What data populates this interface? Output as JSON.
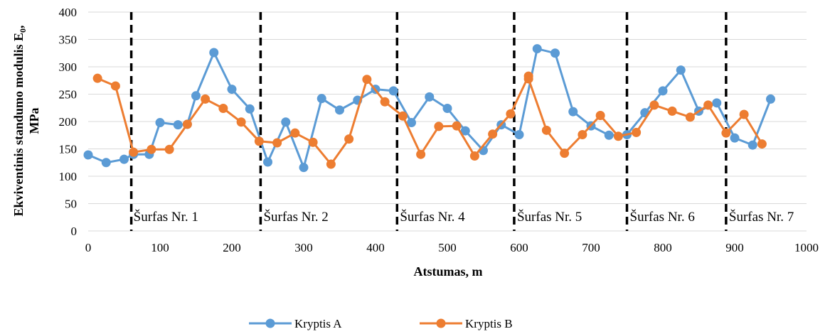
{
  "chart_data": {
    "type": "line",
    "xlabel": "Atstumas, m",
    "ylabel_line1": "Ekviventinis standumo modulis E",
    "ylabel_sub": "0",
    "ylabel_line1_suffix": ",",
    "ylabel_line2": "MPa",
    "xlim": [
      0,
      1000
    ],
    "ylim": [
      0,
      400
    ],
    "x_ticks": [
      0,
      100,
      200,
      300,
      400,
      500,
      600,
      700,
      800,
      900,
      1000
    ],
    "y_ticks": [
      0,
      50,
      100,
      150,
      200,
      250,
      300,
      350,
      400
    ],
    "grid": "horizontal",
    "legend_position": "bottom",
    "series": [
      {
        "name": "Kryptis A",
        "color": "#5B9BD5",
        "points": [
          [
            0,
            139
          ],
          [
            25,
            125
          ],
          [
            50,
            131
          ],
          [
            63,
            140
          ],
          [
            85,
            140
          ],
          [
            100,
            198
          ],
          [
            125,
            194
          ],
          [
            138,
            195
          ],
          [
            150,
            247
          ],
          [
            175,
            326
          ],
          [
            200,
            259
          ],
          [
            225,
            223
          ],
          [
            250,
            126
          ],
          [
            275,
            199
          ],
          [
            300,
            116
          ],
          [
            325,
            242
          ],
          [
            350,
            221
          ],
          [
            375,
            239
          ],
          [
            400,
            259
          ],
          [
            425,
            256
          ],
          [
            450,
            198
          ],
          [
            475,
            245
          ],
          [
            500,
            224
          ],
          [
            525,
            183
          ],
          [
            550,
            147
          ],
          [
            575,
            194
          ],
          [
            600,
            176
          ],
          [
            625,
            333
          ],
          [
            650,
            325
          ],
          [
            675,
            218
          ],
          [
            700,
            192
          ],
          [
            725,
            175
          ],
          [
            750,
            176
          ],
          [
            775,
            216
          ],
          [
            800,
            256
          ],
          [
            825,
            294
          ],
          [
            850,
            219
          ],
          [
            875,
            234
          ],
          [
            900,
            170
          ],
          [
            925,
            157
          ],
          [
            950,
            241
          ]
        ]
      },
      {
        "name": "Kryptis B",
        "color": "#ED7D31",
        "points": [
          [
            13,
            279
          ],
          [
            38,
            265
          ],
          [
            63,
            144
          ],
          [
            88,
            149
          ],
          [
            113,
            149
          ],
          [
            138,
            195
          ],
          [
            163,
            241
          ],
          [
            188,
            224
          ],
          [
            213,
            199
          ],
          [
            238,
            164
          ],
          [
            263,
            161
          ],
          [
            288,
            179
          ],
          [
            313,
            162
          ],
          [
            338,
            122
          ],
          [
            363,
            168
          ],
          [
            388,
            277
          ],
          [
            413,
            236
          ],
          [
            438,
            210
          ],
          [
            463,
            140
          ],
          [
            488,
            191
          ],
          [
            513,
            192
          ],
          [
            538,
            137
          ],
          [
            563,
            177
          ],
          [
            588,
            214
          ],
          [
            613,
            283
          ],
          [
            613,
            278
          ],
          [
            638,
            184
          ],
          [
            663,
            142
          ],
          [
            688,
            176
          ],
          [
            713,
            211
          ],
          [
            738,
            173
          ],
          [
            763,
            180
          ],
          [
            788,
            230
          ],
          [
            813,
            219
          ],
          [
            838,
            208
          ],
          [
            863,
            230
          ],
          [
            888,
            179
          ],
          [
            913,
            213
          ],
          [
            938,
            159
          ]
        ]
      }
    ],
    "dividers": [
      60,
      240,
      430,
      593,
      750,
      888
    ],
    "sections": [
      {
        "label": "Šurfas Nr. 1",
        "x": 63
      },
      {
        "label": "Šurfas Nr. 2",
        "x": 244
      },
      {
        "label": "Šurfas Nr. 4",
        "x": 434
      },
      {
        "label": "Šurfas Nr. 5",
        "x": 597
      },
      {
        "label": "Šurfas Nr. 6",
        "x": 754
      },
      {
        "label": "Šurfas Nr. 7",
        "x": 892
      }
    ]
  }
}
